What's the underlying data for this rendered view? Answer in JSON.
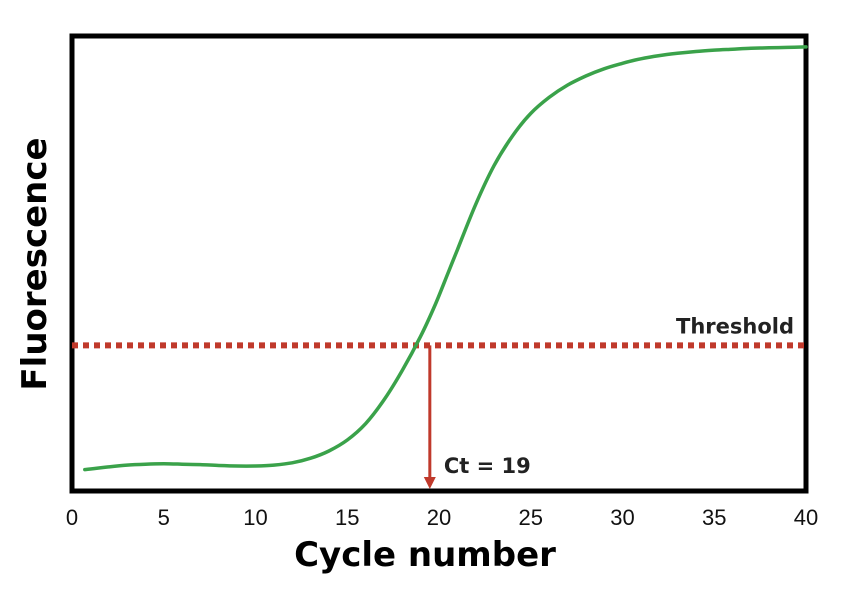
{
  "chart_data": {
    "type": "line",
    "xlabel": "Cycle number",
    "ylabel": "Fluorescence",
    "xlim": [
      0,
      40
    ],
    "ylim": [
      0,
      1
    ],
    "y_ticks_shown": false,
    "grid": false,
    "xticks": [
      0,
      5,
      10,
      15,
      20,
      25,
      30,
      35,
      40
    ],
    "series": [
      {
        "color": "#3aa24a",
        "x": [
          0.7,
          2,
          3,
          4,
          5,
          6,
          7,
          8,
          9,
          10,
          11,
          12,
          13,
          14,
          15,
          16,
          17,
          18,
          19,
          19.8,
          20.5,
          21,
          22,
          23,
          24,
          25,
          26,
          27,
          28,
          29,
          30,
          31,
          32,
          33,
          34,
          35,
          36,
          37,
          38,
          39,
          40
        ],
        "y": [
          0.047,
          0.053,
          0.057,
          0.059,
          0.06,
          0.059,
          0.058,
          0.056,
          0.055,
          0.055,
          0.057,
          0.062,
          0.072,
          0.088,
          0.112,
          0.148,
          0.2,
          0.265,
          0.34,
          0.41,
          0.48,
          0.53,
          0.63,
          0.715,
          0.78,
          0.83,
          0.865,
          0.892,
          0.912,
          0.928,
          0.94,
          0.95,
          0.957,
          0.962,
          0.966,
          0.969,
          0.971,
          0.973,
          0.974,
          0.975,
          0.976
        ]
      }
    ],
    "threshold": {
      "y": 0.32,
      "label": "Threshold",
      "color": "#c0392b"
    },
    "ct_marker": {
      "x": 19.5,
      "label": "Ct = 19",
      "color": "#c0392b"
    }
  }
}
